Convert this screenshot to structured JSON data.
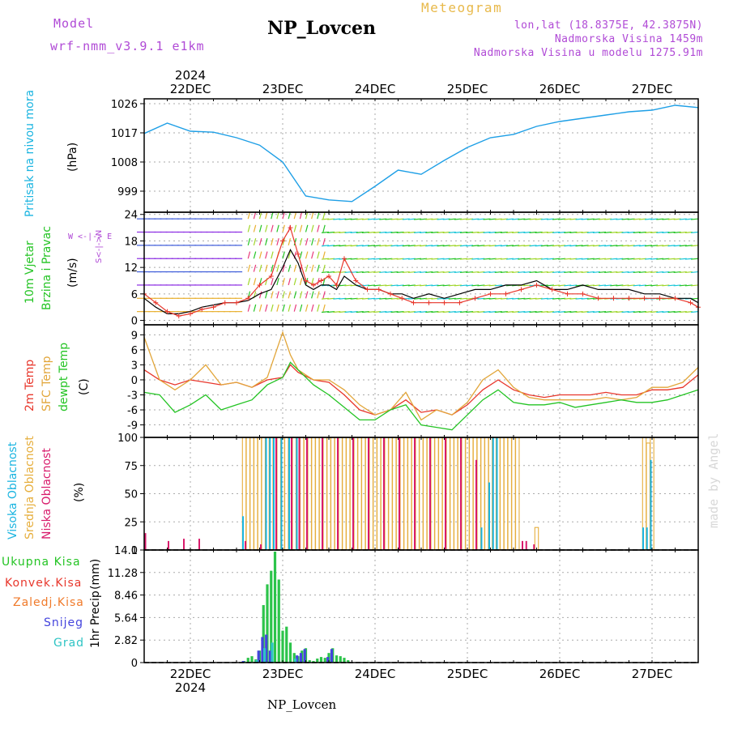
{
  "header": {
    "model_label": "Model",
    "model_name": "wrf-nmm_v3.9.1 e1km",
    "title": "NP_Lovcen",
    "meteogram": "Meteogram",
    "lonlat": "lon,lat (18.8375E, 42.3875N)",
    "elevation": "Nadmorska Visina 1459m",
    "model_elevation": "Nadmorska Visina u modelu 1275.91m",
    "year_top": "2024"
  },
  "footer": {
    "station": "NP_Lovcen",
    "year_bottom": "2024",
    "credit": "made by Angel"
  },
  "time_axis": {
    "day_labels": [
      "22DEC",
      "23DEC",
      "24DEC",
      "25DEC",
      "26DEC",
      "27DEC"
    ],
    "start_hours_before_first_tick": 12,
    "span_hours": 144
  },
  "panel_labels": {
    "pressure": {
      "name": "Pritisak na nivou mora",
      "unit": "(hPa)"
    },
    "wind": {
      "name1": "10m Vjetar",
      "name2": "Brzina i Pravac",
      "unit": "(m/s)",
      "compass": "W <-|-> E",
      "compass2": "S<-|->N"
    },
    "temp": {
      "t2m": "2m Temp",
      "sfc": "SFC Temp",
      "dew": "dewpt Temp",
      "unit": "(C)"
    },
    "cloud": {
      "high": "Visoka Oblacnost",
      "mid": "Srednja Oblacnost",
      "low": "Niska Oblacnost",
      "unit": "(%)"
    },
    "precip": {
      "total": "Ukupna Kisa",
      "conv": "Konvek.Kisa",
      "frz": "Zaledj.Kisa",
      "snow": "Snijeg",
      "hail": "Grad",
      "name": "1hr Precip",
      "unit": "(mm)"
    }
  },
  "colors": {
    "pressure": "#1e9fe6",
    "t2m": "#e8362b",
    "sfc": "#e2a63a",
    "dew": "#24c424",
    "cloud_high": "#1ab4e0",
    "cloud_mid": "#e6ae3c",
    "cloud_low": "#d81b6b",
    "precip_total": "#2cc44a",
    "precip_conv": "#e64040",
    "precip_frz": "#f07a2a",
    "precip_snow": "#4444dd",
    "precip_hail": "#2ec4c4"
  },
  "chart_data": [
    {
      "type": "line",
      "name": "pressure",
      "x_unit": "hours",
      "yticks": [
        999,
        1008,
        1017,
        1026
      ],
      "ylim": [
        992.5,
        1027.5
      ],
      "grid": true,
      "x": [
        0,
        6,
        12,
        18,
        24,
        30,
        36,
        42,
        48,
        54,
        60,
        66,
        72,
        78,
        84,
        90,
        96,
        102,
        108,
        114,
        120,
        126,
        132,
        138,
        144
      ],
      "values": [
        1016.8,
        1020,
        1017.5,
        1017.2,
        1015.5,
        1013.2,
        1008,
        997.5,
        996.3,
        995.8,
        1000.5,
        1005.5,
        1004.2,
        1008.5,
        1012.5,
        1015.5,
        1016.5,
        1019,
        1020.5,
        1021.5,
        1022.5,
        1023.5,
        1024,
        1025.5,
        1024.8
      ]
    },
    {
      "type": "line",
      "name": "wind speed",
      "x_unit": "hours",
      "yticks": [
        0,
        6,
        12,
        18,
        24
      ],
      "ylim": [
        -1,
        24.5
      ],
      "series": [
        {
          "color": "#000000",
          "x": [
            0,
            3,
            6,
            9,
            12,
            15,
            18,
            21,
            24,
            27,
            30,
            33,
            36,
            38,
            40,
            42,
            44,
            46,
            48,
            50,
            52,
            55,
            58,
            61,
            64,
            67,
            70,
            74,
            78,
            82,
            86,
            90,
            94,
            98,
            102,
            106,
            110,
            114,
            118,
            122,
            126,
            130,
            134,
            138,
            142,
            144
          ],
          "values": [
            5,
            3,
            1.5,
            1.5,
            2,
            3,
            3.5,
            4,
            4,
            4.5,
            6,
            7,
            12,
            16,
            13,
            8,
            7,
            8,
            8,
            7,
            10,
            8,
            7,
            7,
            6,
            6,
            5,
            6,
            5,
            6,
            7,
            7,
            8,
            8,
            9,
            7,
            7,
            8,
            7,
            7,
            7,
            6,
            6,
            5,
            5,
            4
          ]
        },
        {
          "color": "#e8362b",
          "x": [
            0,
            3,
            6,
            9,
            12,
            15,
            18,
            21,
            24,
            27,
            30,
            33,
            36,
            38,
            40,
            42,
            44,
            46,
            48,
            50,
            52,
            55,
            58,
            61,
            64,
            67,
            70,
            74,
            78,
            82,
            86,
            90,
            94,
            98,
            102,
            106,
            110,
            114,
            118,
            122,
            126,
            130,
            134,
            138,
            142,
            144
          ],
          "values": [
            6,
            4,
            2,
            1,
            1.5,
            2.5,
            3,
            4,
            4,
            5,
            8,
            10,
            18,
            21,
            15,
            9,
            8,
            9,
            10,
            8,
            14,
            9,
            7,
            7,
            6,
            5,
            4,
            4,
            4,
            4,
            5,
            6,
            6,
            7,
            8,
            7,
            6,
            6,
            5,
            5,
            5,
            5,
            5,
            5,
            4,
            3
          ]
        }
      ]
    },
    {
      "type": "line",
      "name": "temperature",
      "x_unit": "hours",
      "yticks": [
        -9,
        -6,
        -3,
        0,
        3,
        6,
        9
      ],
      "ylim": [
        -11.5,
        11
      ],
      "series": [
        {
          "name": "2m Temp",
          "color": "#e8362b",
          "x": [
            0,
            4,
            8,
            12,
            16,
            20,
            24,
            28,
            32,
            36,
            38,
            40,
            44,
            48,
            52,
            56,
            60,
            64,
            68,
            72,
            76,
            80,
            84,
            88,
            92,
            96,
            100,
            104,
            108,
            112,
            116,
            120,
            124,
            128,
            132,
            136,
            140,
            144
          ],
          "values": [
            2,
            0,
            -1,
            0,
            -0.5,
            -1,
            -0.5,
            -1.5,
            0,
            0.5,
            3,
            1.5,
            0,
            -0.5,
            -3,
            -6,
            -7,
            -6,
            -4,
            -6.5,
            -6,
            -7,
            -5,
            -2,
            0,
            -2,
            -3,
            -3.5,
            -3,
            -3,
            -3,
            -2.5,
            -3,
            -3,
            -2,
            -2,
            -1.5,
            1
          ]
        },
        {
          "name": "SFC Temp",
          "color": "#e2a63a",
          "x": [
            0,
            4,
            8,
            12,
            16,
            20,
            24,
            28,
            32,
            36,
            38,
            40,
            44,
            48,
            52,
            56,
            60,
            64,
            68,
            72,
            76,
            80,
            84,
            88,
            92,
            96,
            100,
            104,
            108,
            112,
            116,
            120,
            124,
            128,
            132,
            136,
            140,
            144
          ],
          "values": [
            8.5,
            0,
            -2,
            0,
            3,
            -1,
            -0.5,
            -1.5,
            0.5,
            9.5,
            5,
            2,
            0,
            0,
            -2,
            -5,
            -7,
            -6,
            -2.5,
            -8,
            -6,
            -7,
            -4.5,
            0,
            2,
            -1.5,
            -3.5,
            -4,
            -4,
            -4,
            -4,
            -3.5,
            -4,
            -3.5,
            -1.5,
            -1.5,
            -0.5,
            2.5
          ]
        },
        {
          "name": "dewpt Temp",
          "color": "#24c424",
          "x": [
            0,
            4,
            8,
            12,
            16,
            20,
            24,
            28,
            32,
            36,
            38,
            40,
            44,
            48,
            52,
            56,
            60,
            64,
            68,
            72,
            76,
            80,
            84,
            88,
            92,
            96,
            100,
            104,
            108,
            112,
            116,
            120,
            124,
            128,
            132,
            136,
            140,
            144
          ],
          "values": [
            -2.5,
            -3,
            -6.5,
            -5,
            -3,
            -6,
            -5,
            -4,
            -1,
            0.5,
            3.5,
            2,
            -1,
            -3,
            -5.5,
            -8,
            -8,
            -6,
            -5,
            -9,
            -9.5,
            -10,
            -7,
            -4,
            -2,
            -4.5,
            -5,
            -5,
            -4.5,
            -5.5,
            -5,
            -4.5,
            -4,
            -4.5,
            -4.5,
            -4,
            -3,
            -2
          ]
        }
      ]
    },
    {
      "type": "bar",
      "name": "cloud cover",
      "x_unit": "hours",
      "yticks": [
        0,
        25,
        50,
        75,
        100
      ],
      "ylim": [
        0,
        100
      ],
      "series": [
        {
          "name": "Srednja Oblacnost",
          "color": "#e6ae3c",
          "x": [
            26,
            27,
            28,
            29,
            30,
            31,
            32,
            33,
            34,
            35,
            36,
            37,
            38,
            39,
            40,
            41,
            42,
            43,
            44,
            45,
            46,
            47,
            48,
            49,
            50,
            51,
            52,
            53,
            54,
            55,
            56,
            57,
            58,
            59,
            60,
            61,
            62,
            63,
            64,
            65,
            66,
            67,
            68,
            69,
            70,
            71,
            72,
            73,
            74,
            75,
            76,
            77,
            78,
            79,
            80,
            81,
            82,
            83,
            84,
            85,
            86,
            87,
            88,
            89,
            90,
            91,
            92,
            93,
            94,
            95,
            96,
            97,
            102,
            130,
            131,
            132
          ],
          "values": [
            100,
            100,
            100,
            100,
            100,
            100,
            100,
            100,
            100,
            100,
            100,
            100,
            100,
            100,
            100,
            100,
            100,
            100,
            100,
            100,
            100,
            100,
            100,
            100,
            100,
            100,
            100,
            100,
            100,
            100,
            100,
            100,
            100,
            100,
            100,
            100,
            100,
            100,
            100,
            100,
            100,
            100,
            100,
            100,
            100,
            100,
            100,
            100,
            100,
            100,
            100,
            100,
            100,
            100,
            100,
            100,
            100,
            100,
            100,
            100,
            100,
            100,
            100,
            100,
            100,
            100,
            100,
            100,
            100,
            100,
            100,
            100,
            20,
            100,
            95,
            100
          ]
        },
        {
          "name": "Visoka Oblacnost",
          "color": "#1ab4e0",
          "x": [
            26,
            32,
            33,
            34,
            36,
            38,
            40,
            88,
            90,
            91,
            92,
            130,
            131,
            132
          ],
          "values": [
            30,
            100,
            100,
            100,
            100,
            100,
            100,
            20,
            60,
            100,
            100,
            20,
            20,
            80
          ]
        },
        {
          "name": "Niska Oblacnost",
          "color": "#d81b6b",
          "x": [
            0,
            6,
            10,
            14,
            26,
            30,
            34,
            38,
            40,
            42,
            46,
            50,
            54,
            58,
            62,
            66,
            70,
            74,
            78,
            82,
            86,
            98,
            99,
            101
          ],
          "values": [
            15,
            8,
            10,
            10,
            8,
            5,
            100,
            100,
            100,
            100,
            100,
            100,
            100,
            100,
            100,
            100,
            100,
            100,
            100,
            100,
            80,
            8,
            8,
            5
          ]
        }
      ]
    },
    {
      "type": "bar",
      "name": "1hr precipitation",
      "x_unit": "hours",
      "yticks": [
        0,
        2.82,
        5.64,
        8.46,
        11.28,
        14.1
      ],
      "ylim": [
        0,
        14.1
      ],
      "series": [
        {
          "name": "Ukupna Kisa",
          "color": "#2cc44a",
          "x": [
            26,
            27,
            28,
            29,
            30,
            31,
            32,
            33,
            34,
            35,
            36,
            37,
            38,
            39,
            40,
            41,
            42,
            43,
            44,
            45,
            46,
            47,
            48,
            49,
            50,
            51,
            52,
            53
          ],
          "values": [
            0.2,
            0.6,
            0.8,
            0.4,
            1.5,
            7.2,
            9.8,
            11.5,
            13.9,
            10.4,
            4,
            4.5,
            2.5,
            1.2,
            0.8,
            1.5,
            1.8,
            0.3,
            0.2,
            0.5,
            0.7,
            0.6,
            1.2,
            1.8,
            0.9,
            0.8,
            0.6,
            0.3
          ]
        },
        {
          "name": "Snijeg",
          "color": "#4444dd",
          "x": [
            26,
            30,
            31,
            32,
            33,
            40,
            41,
            42,
            48,
            49
          ],
          "values": [
            0.2,
            1.5,
            3.2,
            3.5,
            1.5,
            0.9,
            1.2,
            1.7,
            0.7,
            1.7
          ]
        },
        {
          "name": "Grad",
          "color": "#2ec4c4",
          "x": [
            29,
            31,
            33,
            39
          ],
          "values": [
            0.3,
            1.8,
            2.5,
            0.5
          ]
        }
      ]
    }
  ]
}
